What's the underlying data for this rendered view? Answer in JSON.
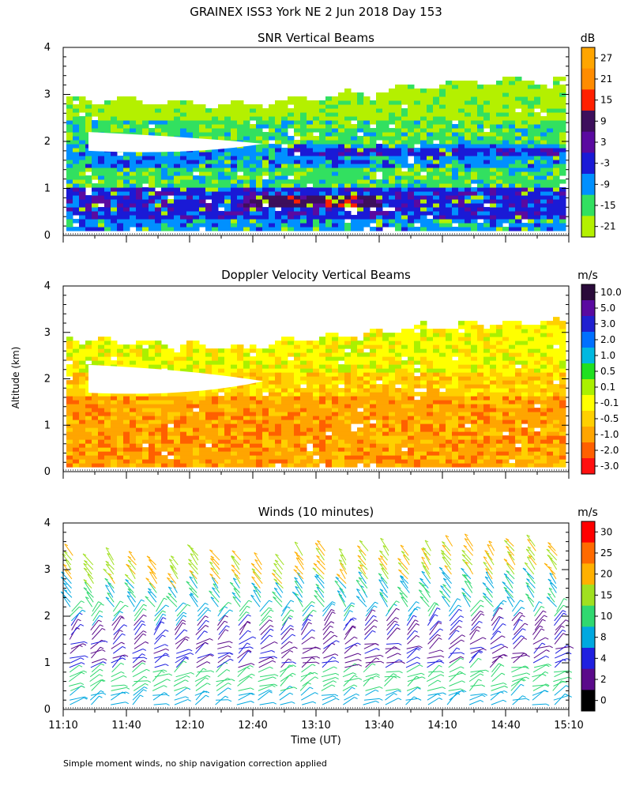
{
  "title": "GRAINEX ISS3 York NE   2 Jun 2018 Day 153",
  "ylabel": "Altitude (km)",
  "xlabel": "Time (UT)",
  "footnote": "Simple moment winds, no ship navigation correction applied",
  "chart_data": [
    {
      "type": "heatmap",
      "title": "SNR Vertical Beams",
      "units": "dB",
      "ylim": [
        0,
        4
      ],
      "yticks": [
        "0",
        "1",
        "2",
        "3",
        "4"
      ],
      "xticks": [
        "11:10",
        "11:40",
        "12:10",
        "12:40",
        "13:10",
        "13:40",
        "14:10",
        "14:40",
        "15:10"
      ],
      "colorbar": {
        "labels": [
          "27",
          "21",
          "15",
          "9",
          "3",
          "-3",
          "-9",
          "-15",
          "-21"
        ],
        "colors": [
          "#ffa500",
          "#ff8c00",
          "#ff2000",
          "#3d0f5c",
          "#5a0aa0",
          "#1a1ad6",
          "#0090ff",
          "#32e060",
          "#b4f000"
        ]
      }
    },
    {
      "type": "heatmap",
      "title": "Doppler Velocity Vertical Beams",
      "units": "m/s",
      "ylim": [
        0,
        4
      ],
      "yticks": [
        "0",
        "1",
        "2",
        "3",
        "4"
      ],
      "xticks": [
        "11:10",
        "11:40",
        "12:10",
        "12:40",
        "13:10",
        "13:40",
        "14:10",
        "14:40",
        "15:10"
      ],
      "colorbar": {
        "labels": [
          "10.0",
          "5.0",
          "3.0",
          "2.0",
          "1.0",
          "0.5",
          "0.1",
          "-0.1",
          "-0.5",
          "-1.0",
          "-2.0",
          "-3.0"
        ],
        "colors": [
          "#2a0a3a",
          "#5a0aa0",
          "#2020d0",
          "#0070ff",
          "#00b8e0",
          "#20e020",
          "#aaf000",
          "#ffff00",
          "#ffd000",
          "#ffa500",
          "#ff6000",
          "#ff1010"
        ]
      }
    },
    {
      "type": "scatter",
      "title": "Winds (10 minutes)",
      "units": "m/s",
      "ylim": [
        0,
        4
      ],
      "yticks": [
        "0",
        "1",
        "2",
        "3",
        "4"
      ],
      "xticks": [
        "11:10",
        "11:40",
        "12:10",
        "12:40",
        "13:10",
        "13:40",
        "14:10",
        "14:40",
        "15:10"
      ],
      "profile_times": [
        "11:15",
        "11:25",
        "11:35",
        "11:45",
        "11:55",
        "12:05",
        "12:15",
        "12:25",
        "12:35",
        "12:45",
        "12:55",
        "13:05",
        "13:15",
        "13:25",
        "13:35",
        "13:45",
        "13:55",
        "14:05",
        "14:15",
        "14:25",
        "14:35",
        "14:45",
        "14:55",
        "15:05"
      ],
      "top_km": [
        3.4,
        3.2,
        3.3,
        3.3,
        3.2,
        3.2,
        3.4,
        3.3,
        3.3,
        3.2,
        3.2,
        3.4,
        3.5,
        3.3,
        3.5,
        3.5,
        3.4,
        3.5,
        3.6,
        3.6,
        3.5,
        3.6,
        3.6,
        3.5
      ],
      "colorbar": {
        "labels": [
          "30",
          "25",
          "20",
          "15",
          "10",
          "8",
          "4",
          "2",
          "0"
        ],
        "colors": [
          "#ff0000",
          "#ff6a00",
          "#ffb000",
          "#a0e020",
          "#30d870",
          "#00a8e0",
          "#2020e0",
          "#5a0a8a",
          "#000000"
        ]
      }
    }
  ]
}
